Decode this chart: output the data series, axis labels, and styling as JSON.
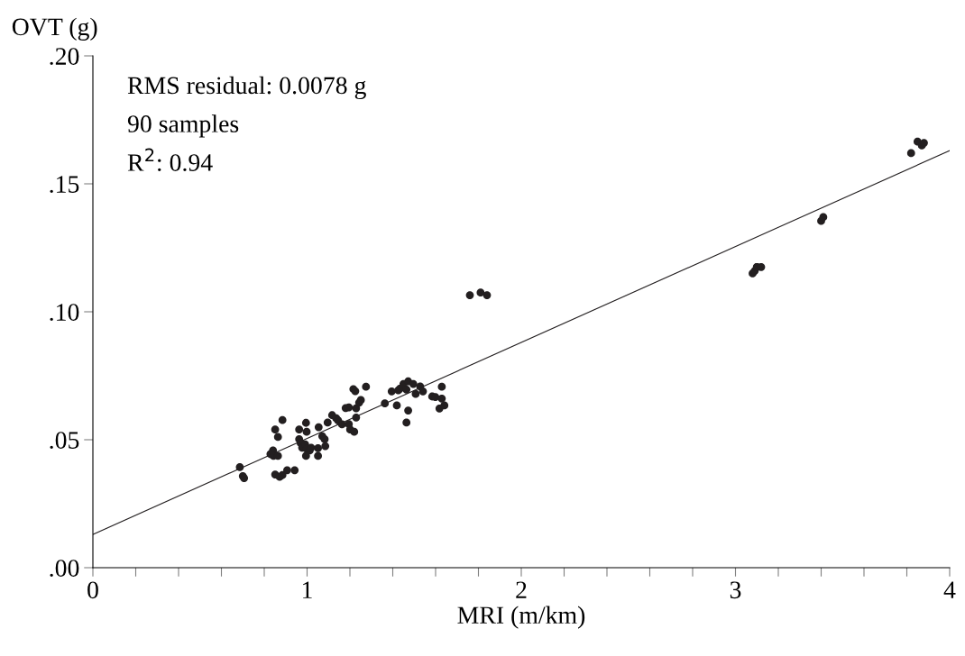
{
  "chart_data": {
    "type": "scatter",
    "xlabel": "MRI (m/km)",
    "ylabel": "OVT (g)",
    "annotations": [
      "RMS residual: 0.0078 g",
      "90 samples",
      "R$^{2}$: 0.94"
    ],
    "xlim": [
      0,
      4
    ],
    "ylim": [
      0,
      0.2
    ],
    "xticks": [
      0,
      {
        "value": 0.2,
        "label": null
      },
      {
        "value": 0.4,
        "label": null
      },
      {
        "value": 0.6,
        "label": null
      },
      {
        "value": 0.8,
        "label": null
      },
      1,
      {
        "value": 1.2,
        "label": null
      },
      {
        "value": 1.4,
        "label": null
      },
      {
        "value": 1.6,
        "label": null
      },
      {
        "value": 1.8,
        "label": null
      },
      2,
      {
        "value": 2.2,
        "label": null
      },
      {
        "value": 2.4,
        "label": null
      },
      {
        "value": 2.6,
        "label": null
      },
      {
        "value": 2.8,
        "label": null
      },
      3,
      {
        "value": 3.2,
        "label": null
      },
      {
        "value": 3.4,
        "label": null
      },
      {
        "value": 3.6,
        "label": null
      },
      {
        "value": 3.8,
        "label": null
      },
      4
    ],
    "yticks": [
      {
        "value": 0,
        "label": ".00"
      },
      {
        "value": 0.05,
        "label": ".05"
      },
      {
        "value": 0.1,
        "label": ".10"
      },
      {
        "value": 0.15,
        "label": ".15"
      },
      {
        "value": 0.2,
        "label": ".20"
      }
    ],
    "grid": false,
    "legend": false,
    "marker": "circle",
    "series": [
      {
        "color": "#231f20",
        "x": [
          0.686,
          0.7,
          0.706,
          0.841,
          0.829,
          0.843,
          0.864,
          0.851,
          0.872,
          0.885,
          0.907,
          0.942,
          0.851,
          0.864,
          0.885,
          0.963,
          0.995,
          0.998,
          0.963,
          0.97,
          0.977,
          0.991,
          0.998,
          1.012,
          1.019,
          0.995,
          1.051,
          1.051,
          1.054,
          1.071,
          1.082,
          1.085,
          1.096,
          1.117,
          1.136,
          1.145,
          1.163,
          1.195,
          1.201,
          1.22,
          1.229,
          1.18,
          1.195,
          1.229,
          1.243,
          1.251,
          1.216,
          1.225,
          1.275,
          1.363,
          1.395,
          1.419,
          1.426,
          1.433,
          1.45,
          1.472,
          1.496,
          1.464,
          1.472,
          1.464,
          1.507,
          1.528,
          1.541,
          1.584,
          1.599,
          1.629,
          1.629,
          1.618,
          1.641,
          1.76,
          1.81,
          1.84,
          3.08,
          3.09,
          3.1,
          3.1,
          3.12,
          3.4,
          3.41,
          3.82,
          3.85,
          3.87,
          3.88
        ],
        "values": [
          0.0393,
          0.0358,
          0.035,
          0.0458,
          0.0444,
          0.0437,
          0.0437,
          0.0364,
          0.0355,
          0.0362,
          0.0381,
          0.0381,
          0.054,
          0.0511,
          0.0577,
          0.054,
          0.0566,
          0.0531,
          0.0502,
          0.0487,
          0.0469,
          0.0482,
          0.0464,
          0.0458,
          0.0469,
          0.0437,
          0.0437,
          0.0467,
          0.0549,
          0.0514,
          0.0502,
          0.0475,
          0.0567,
          0.0596,
          0.0584,
          0.0575,
          0.056,
          0.0561,
          0.054,
          0.0531,
          0.0587,
          0.0624,
          0.0626,
          0.0623,
          0.0645,
          0.0655,
          0.0698,
          0.069,
          0.0707,
          0.0642,
          0.0689,
          0.0634,
          0.0693,
          0.0699,
          0.0718,
          0.0728,
          0.0718,
          0.0696,
          0.0614,
          0.0567,
          0.0679,
          0.0708,
          0.0689,
          0.0669,
          0.0667,
          0.0707,
          0.0661,
          0.0622,
          0.0634,
          0.1065,
          0.1075,
          0.1065,
          0.115,
          0.116,
          0.1175,
          0.1175,
          0.1175,
          0.1355,
          0.137,
          0.162,
          0.1665,
          0.165,
          0.166
        ]
      },
      {
        "type": "line",
        "color": "#231f20",
        "marker": "none",
        "line_style": "solid",
        "x": [
          0,
          4
        ],
        "values": [
          0.013,
          0.163
        ]
      }
    ]
  }
}
